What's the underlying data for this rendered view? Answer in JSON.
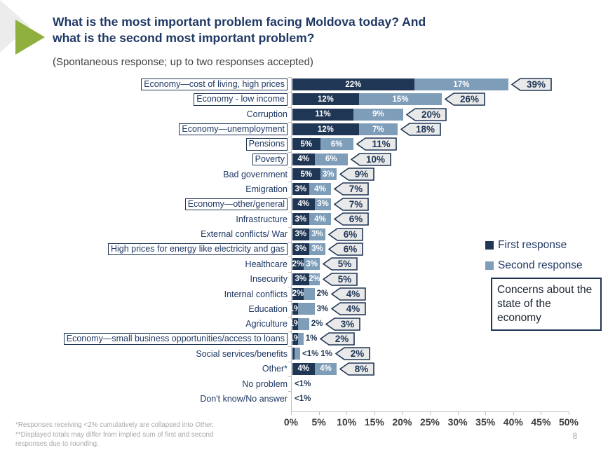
{
  "header": {
    "title_line1": "What is the most important problem facing Moldova today? And",
    "title_line2": "what is the second most important problem?",
    "subtitle": "(Spontaneous response; up to two responses accepted)"
  },
  "legend": {
    "first_label": "First response",
    "second_label": "Second response"
  },
  "annotation": {
    "text": "Concerns about the state of the economy"
  },
  "footnotes": {
    "f1_main": "*Responses receiving <2% cumulatively are collapsed into ",
    "f1_italic": "Other.",
    "f2": "**Displayed totals may differ from implied sum of first and second responses due to rounding."
  },
  "page_number": "8",
  "colors": {
    "first_response": "#1F3655",
    "second_response": "#7E9DB9",
    "total_fill": "#E9E9E9",
    "title_navy": "#1F3864",
    "accent_green": "#8FAF3E",
    "deco_gray": "#ECECEC",
    "axis_gray": "#BFBFBF"
  },
  "chart_data": {
    "type": "bar",
    "orientation": "horizontal",
    "stacked": true,
    "series_names": [
      "First response",
      "Second response"
    ],
    "xlim": [
      0,
      50
    ],
    "x_ticks": [
      "0%",
      "5%",
      "10%",
      "15%",
      "20%",
      "25%",
      "30%",
      "35%",
      "40%",
      "45%",
      "50%"
    ],
    "grid": false,
    "legend_position": "right",
    "rows": [
      {
        "label": "Economy—cost of living, high prices",
        "boxed": true,
        "first": 22,
        "first_text": "22%",
        "first_inside": true,
        "second": 17,
        "second_text": "17%",
        "second_inside": true,
        "total": "39%"
      },
      {
        "label": "Economy - low income",
        "boxed": true,
        "first": 12,
        "first_text": "12%",
        "first_inside": true,
        "second": 15,
        "second_text": "15%",
        "second_inside": true,
        "total": "26%"
      },
      {
        "label": "Corruption",
        "boxed": false,
        "first": 11,
        "first_text": "11%",
        "first_inside": true,
        "second": 9,
        "second_text": "9%",
        "second_inside": true,
        "total": "20%"
      },
      {
        "label": "Economy—unemployment",
        "boxed": true,
        "first": 12,
        "first_text": "12%",
        "first_inside": true,
        "second": 7,
        "second_text": "7%",
        "second_inside": true,
        "total": "18%"
      },
      {
        "label": "Pensions",
        "boxed": true,
        "first": 5,
        "first_text": "5%",
        "first_inside": true,
        "second": 6,
        "second_text": "6%",
        "second_inside": true,
        "total": "11%"
      },
      {
        "label": "Poverty",
        "boxed": true,
        "first": 4,
        "first_text": "4%",
        "first_inside": true,
        "second": 6,
        "second_text": "6%",
        "second_inside": true,
        "total": "10%"
      },
      {
        "label": "Bad government",
        "boxed": false,
        "first": 5,
        "first_text": "5%",
        "first_inside": true,
        "second": 3,
        "second_text": "3%",
        "second_inside": true,
        "total": "9%"
      },
      {
        "label": "Emigration",
        "boxed": false,
        "first": 3,
        "first_text": "3%",
        "first_inside": true,
        "second": 4,
        "second_text": "4%",
        "second_inside": true,
        "total": "7%"
      },
      {
        "label": "Economy—other/general",
        "boxed": true,
        "first": 4,
        "first_text": "4%",
        "first_inside": true,
        "second": 3,
        "second_text": "3%",
        "second_inside": true,
        "total": "7%"
      },
      {
        "label": "Infrastructure",
        "boxed": false,
        "first": 3,
        "first_text": "3%",
        "first_inside": true,
        "second": 4,
        "second_text": "4%",
        "second_inside": true,
        "total": "6%"
      },
      {
        "label": "External conflicts/ War",
        "boxed": false,
        "first": 3,
        "first_text": "3%",
        "first_inside": true,
        "second": 3,
        "second_text": "3%",
        "second_inside": true,
        "total": "6%"
      },
      {
        "label": "High prices for energy like electricity and gas",
        "boxed": true,
        "first": 3,
        "first_text": "3%",
        "first_inside": true,
        "second": 3,
        "second_text": "3%",
        "second_inside": true,
        "total": "6%"
      },
      {
        "label": "Healthcare",
        "boxed": false,
        "first": 2,
        "first_text": "2%",
        "first_inside": true,
        "second": 3,
        "second_text": "3%",
        "second_inside": true,
        "total": "5%"
      },
      {
        "label": "Insecurity",
        "boxed": false,
        "first": 3,
        "first_text": "3%",
        "first_inside": true,
        "second": 2,
        "second_text": "2%",
        "second_inside": true,
        "total": "5%"
      },
      {
        "label": "Internal conflicts",
        "boxed": false,
        "first": 2,
        "first_text": "2%",
        "first_inside": true,
        "second": 2,
        "second_text": "2%",
        "second_inside": false,
        "total": "4%"
      },
      {
        "label": "Education",
        "boxed": false,
        "first": 1,
        "first_text": "1%",
        "first_inside": true,
        "second": 3,
        "second_text": "3%",
        "second_inside": false,
        "total": "4%"
      },
      {
        "label": "Agriculture",
        "boxed": false,
        "first": 1,
        "first_text": "1%",
        "first_inside": true,
        "second": 2,
        "second_text": "2%",
        "second_inside": false,
        "total": "3%"
      },
      {
        "label": "Economy—small business opportunities/access to loans",
        "boxed": true,
        "first": 1,
        "first_text": "1%",
        "first_inside": true,
        "second": 1,
        "second_text": "1%",
        "second_inside": false,
        "total": "2%"
      },
      {
        "label": "Social services/benefits",
        "boxed": false,
        "first": 0.4,
        "first_text": "<1%",
        "first_inside": false,
        "second": 1,
        "second_text": "1%",
        "second_inside": false,
        "total": "2%"
      },
      {
        "label": "Other*",
        "boxed": false,
        "first": 4,
        "first_text": "4%",
        "first_inside": true,
        "second": 4,
        "second_text": "4%",
        "second_inside": true,
        "total": "8%"
      },
      {
        "label": "No problem",
        "boxed": false,
        "first": 0,
        "first_text": "<1%",
        "first_inside": false,
        "second": 0,
        "second_text": "",
        "second_inside": false,
        "total": ""
      },
      {
        "label": "Don't know/No answer",
        "boxed": false,
        "first": 0,
        "first_text": "<1%",
        "first_inside": false,
        "second": 0,
        "second_text": "",
        "second_inside": false,
        "total": ""
      }
    ]
  }
}
